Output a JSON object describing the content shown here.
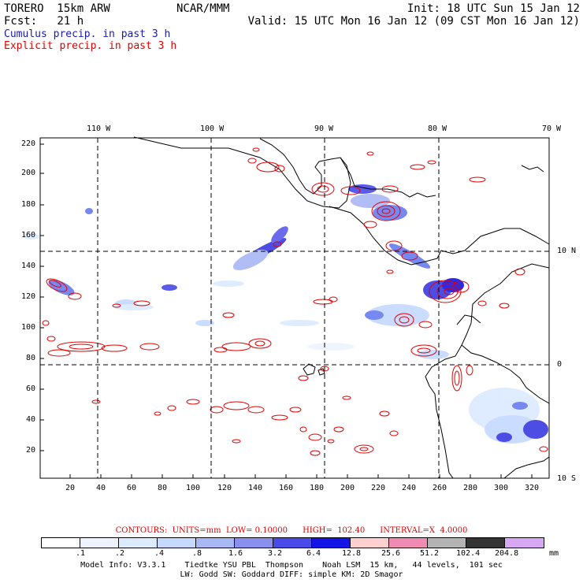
{
  "header": {
    "model": "TORERO  15km ARW",
    "center": "NCAR/MMM",
    "init": "Init: 18 UTC Sun 15 Jan 12",
    "fcst": "Fcst:   21 h",
    "valid": "Valid: 15 UTC Mon 16 Jan 12 (09 CST Mon 16 Jan 12)"
  },
  "legend": {
    "cumulus": "Cumulus precip. in past 3 h",
    "explicit": "Explicit precip. in past 3 h",
    "cumulus_color": "#1a1aaa",
    "explicit_color": "#e00000"
  },
  "map": {
    "top_lon_labels": [
      "110 W",
      "100 W",
      "90 W",
      "80 W",
      "70 W"
    ],
    "right_lat_labels": [
      "10 N",
      "0",
      "10 S"
    ],
    "y_ticks": [
      "220",
      "200",
      "180",
      "160",
      "140",
      "120",
      "100",
      "80",
      "60",
      "40",
      "20"
    ],
    "x_ticks": [
      "20",
      "40",
      "60",
      "80",
      "100",
      "120",
      "140",
      "160",
      "180",
      "200",
      "220",
      "240",
      "260",
      "280",
      "300",
      "320"
    ]
  },
  "contour_info": "CONTOURS:  UNITS=mm  LOW= 0.10000      HIGH=  102.40      INTERVAL=X  4.0000",
  "colorbar": {
    "labels": [
      ".1",
      ".2",
      ".4",
      ".8",
      "1.6",
      "3.2",
      "6.4",
      "12.8",
      "25.6",
      "51.2",
      "102.4",
      "204.8"
    ],
    "unit": "mm",
    "colors": [
      "#ffffff",
      "#eef4ff",
      "#dcebff",
      "#c5d9ff",
      "#a8b8f4",
      "#8a90ee",
      "#4a4ae8",
      "#1414e6",
      "#ffd0d0",
      "#f08cb4",
      "#b4b4b4",
      "#343434",
      "#d8a8f4"
    ]
  },
  "footer": {
    "line1": "Model Info: V3.3.1    Tiedtke YSU PBL  Thompson    Noah LSM  15 km,   44 levels,  101 sec",
    "line2": "LW: Godd SW: Goddard DIFF: simple KM: 2D Smagor"
  }
}
